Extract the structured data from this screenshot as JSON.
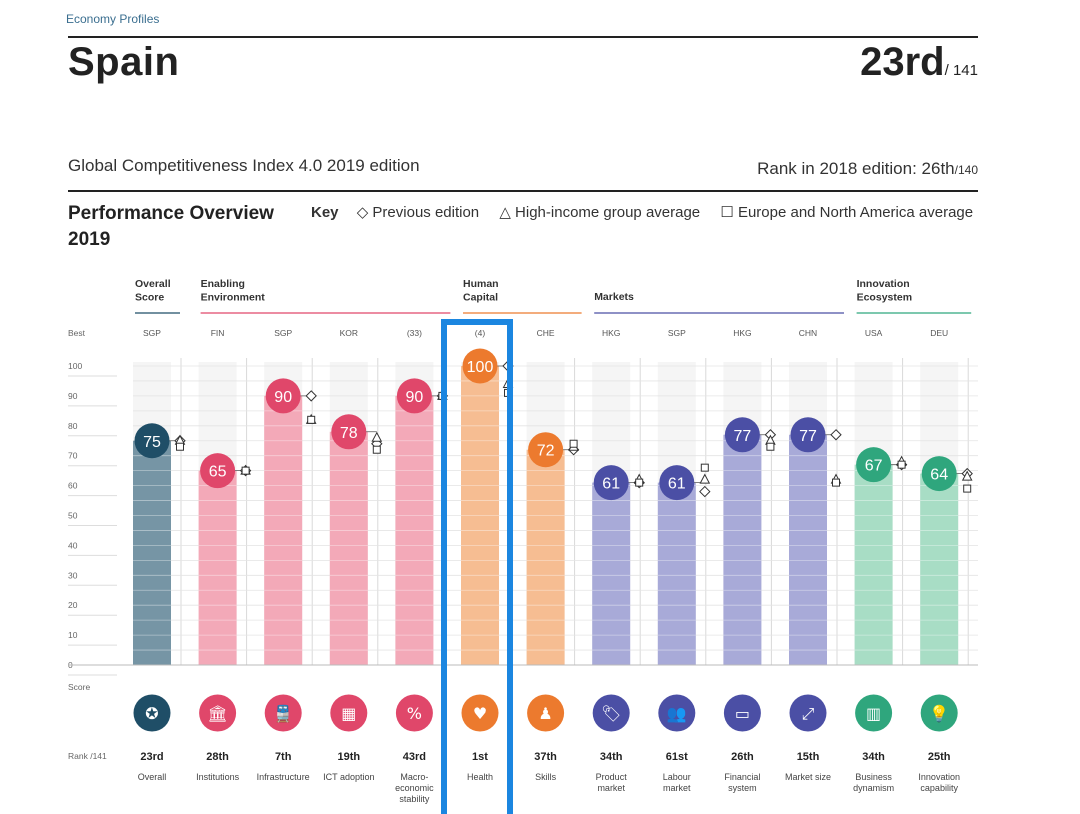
{
  "header": {
    "breadcrumb": "Economy Profiles",
    "country": "Spain",
    "rank": "23rd",
    "rank_of": "/ 141",
    "edition": "Global Competitiveness Index 4.0 2019 edition",
    "prev_rank_label": "Rank in 2018 edition: 26th",
    "prev_rank_of": "/140"
  },
  "overview": {
    "title": "Performance Overview 2019",
    "key_label": "Key",
    "key_items": [
      {
        "symbol": "◇",
        "label": "Previous edition"
      },
      {
        "symbol": "△",
        "label": "High-income group average"
      },
      {
        "symbol": "☐",
        "label": "Europe and North America average"
      }
    ]
  },
  "colors": {
    "overall": "#1f4e67",
    "enabling": "#e0476a",
    "human": "#ec7a2e",
    "markets": "#4b4fa5",
    "innovation": "#2fa67d",
    "highlight": "#1b86e0"
  },
  "chart_data": {
    "type": "bar",
    "title": "Performance Overview 2019",
    "ylabel": "Score",
    "ylim": [
      0,
      100
    ],
    "yticks": [
      0,
      10,
      20,
      30,
      40,
      50,
      60,
      70,
      80,
      90,
      100
    ],
    "best_label": "Best",
    "score_label": "Score",
    "rank_label": "Rank /141",
    "groups": [
      {
        "name": "Overall Score",
        "color": "overall",
        "start": 0,
        "end": 0
      },
      {
        "name": "Enabling Environment",
        "color": "enabling",
        "start": 1,
        "end": 4
      },
      {
        "name": "Human Capital",
        "color": "human",
        "start": 5,
        "end": 6
      },
      {
        "name": "Markets",
        "color": "markets",
        "start": 7,
        "end": 10
      },
      {
        "name": "Innovation Ecosystem",
        "color": "innovation",
        "start": 11,
        "end": 12
      }
    ],
    "pillars": [
      {
        "name": "Overall",
        "best": "SGP",
        "score": 75,
        "rank": "23rd",
        "group": "overall",
        "icon": "medal-icon",
        "glyph": "✪",
        "prev": 75,
        "hi": 75,
        "eu": 73
      },
      {
        "name": "Institutions",
        "best": "FIN",
        "score": 65,
        "rank": "28th",
        "group": "enabling",
        "icon": "institutions-icon",
        "glyph": "🏛",
        "prev": 65,
        "hi": 65,
        "eu": 65
      },
      {
        "name": "Infrastructure",
        "best": "SGP",
        "score": 90,
        "rank": "7th",
        "group": "enabling",
        "icon": "infrastructure-icon",
        "glyph": "🚆",
        "prev": 90,
        "hi": 82,
        "eu": 82
      },
      {
        "name": "ICT adoption",
        "best": "KOR",
        "score": 78,
        "rank": "19th",
        "group": "enabling",
        "icon": "ict-icon",
        "glyph": "▦",
        "prev": 74,
        "hi": 76,
        "eu": 72
      },
      {
        "name": "Macro- economic stability",
        "best": "(33)",
        "score": 90,
        "rank": "43rd",
        "group": "enabling",
        "icon": "macro-icon",
        "glyph": "%",
        "prev": 90,
        "hi": 90,
        "eu": 90
      },
      {
        "name": "Health",
        "best": "(4)",
        "score": 100,
        "rank": "1st",
        "group": "human",
        "icon": "health-icon",
        "glyph": "♥",
        "prev": 100,
        "hi": 94,
        "eu": 91
      },
      {
        "name": "Skills",
        "best": "CHE",
        "score": 72,
        "rank": "37th",
        "group": "human",
        "icon": "skills-icon",
        "glyph": "♟",
        "prev": 72,
        "hi": 73,
        "eu": 74
      },
      {
        "name": "Product market",
        "best": "HKG",
        "score": 61,
        "rank": "34th",
        "group": "markets",
        "icon": "product-market-icon",
        "glyph": "🏷",
        "prev": 61,
        "hi": 62,
        "eu": 61
      },
      {
        "name": "Labour market",
        "best": "SGP",
        "score": 61,
        "rank": "61st",
        "group": "markets",
        "icon": "labour-market-icon",
        "glyph": "👥",
        "prev": 58,
        "hi": 62,
        "eu": 66
      },
      {
        "name": "Financial system",
        "best": "HKG",
        "score": 77,
        "rank": "26th",
        "group": "markets",
        "icon": "financial-system-icon",
        "glyph": "▭",
        "prev": 77,
        "hi": 75,
        "eu": 73
      },
      {
        "name": "Market size",
        "best": "CHN",
        "score": 77,
        "rank": "15th",
        "group": "markets",
        "icon": "market-size-icon",
        "glyph": "⤢",
        "prev": 77,
        "hi": 62,
        "eu": 61
      },
      {
        "name": "Business dynamism",
        "best": "USA",
        "score": 67,
        "rank": "34th",
        "group": "innovation",
        "icon": "business-dynamism-icon",
        "glyph": "▥",
        "prev": 67,
        "hi": 68,
        "eu": 67
      },
      {
        "name": "Innovation capability",
        "best": "DEU",
        "score": 64,
        "rank": "25th",
        "group": "innovation",
        "icon": "innovation-capability-icon",
        "glyph": "💡",
        "prev": 64,
        "hi": 63,
        "eu": 59
      }
    ]
  }
}
